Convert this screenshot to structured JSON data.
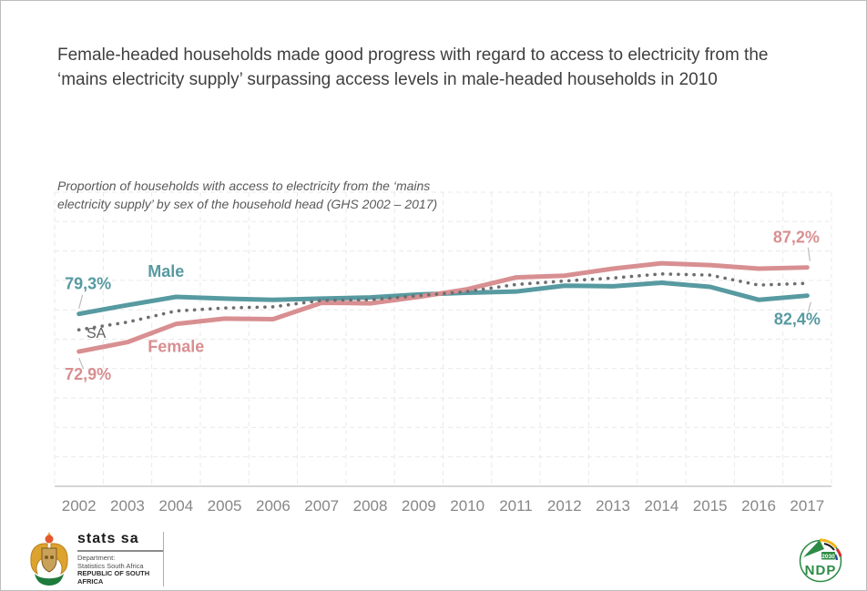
{
  "page": {
    "title": "Female-headed households made good progress with regard to access to electricity from the ‘mains electricity supply’ surpassing access levels in male-headed households in 2010",
    "subtitle": "Proportion of households with access to electricity from the ‘mains electricity supply’ by sex of the household head (GHS 2002 – 2017)"
  },
  "chart_data": {
    "type": "line",
    "x": [
      2002,
      2003,
      2004,
      2005,
      2006,
      2007,
      2008,
      2009,
      2010,
      2011,
      2012,
      2013,
      2014,
      2015,
      2016,
      2017
    ],
    "series": [
      {
        "name": "Male",
        "color": "#579aa1",
        "style": "solid",
        "values": [
          79.3,
          80.8,
          82.2,
          81.9,
          81.7,
          81.9,
          82.1,
          82.6,
          82.9,
          83.1,
          84.1,
          84.0,
          84.6,
          83.9,
          81.7,
          82.4
        ]
      },
      {
        "name": "Female",
        "color": "#d88f91",
        "style": "solid",
        "values": [
          72.9,
          74.5,
          77.6,
          78.5,
          78.4,
          81.2,
          81.1,
          82.2,
          83.5,
          85.5,
          85.8,
          87.0,
          87.9,
          87.6,
          87.0,
          87.2
        ]
      },
      {
        "name": "SA",
        "color": "#6e6e6e",
        "style": "dotted",
        "values": [
          76.6,
          77.9,
          79.8,
          80.3,
          80.5,
          81.6,
          81.7,
          82.4,
          83.1,
          84.3,
          84.9,
          85.4,
          86.1,
          85.9,
          84.2,
          84.5
        ]
      }
    ],
    "ylabel": "",
    "xlabel": "",
    "ylim": [
      50,
      100
    ],
    "grid": "light dashed gridlines, vertical per year band and horizontal every 5 points, y-axis unlabeled",
    "legend_position": "inline labels on lines",
    "annotations": {
      "male_start": "79,3%",
      "female_start": "72,9%",
      "female_end": "87,2%",
      "male_end": "82,4%",
      "male_label": "Male",
      "female_label": "Female",
      "sa_label": "SA",
      "sa_label_color": "#5f5f5f"
    }
  },
  "footer": {
    "statssa": {
      "brand": "stats sa",
      "dept_line1": "Department:",
      "dept_line2": "Statistics South Africa",
      "dept_line3": "REPUBLIC OF SOUTH AFRICA"
    },
    "ndp": {
      "abbr": "NDP",
      "year": "2030"
    }
  }
}
